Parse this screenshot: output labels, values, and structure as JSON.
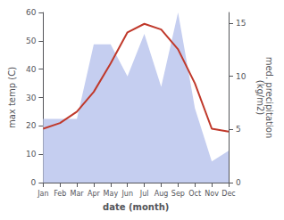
{
  "chart_data": {
    "type": "line",
    "categories": [
      "Jan",
      "Feb",
      "Mar",
      "Apr",
      "May",
      "Jun",
      "Jul",
      "Aug",
      "Sep",
      "Oct",
      "Nov",
      "Dec"
    ],
    "series": [
      {
        "type": "area",
        "color": "#c5cef0",
        "axis": "y2",
        "values": [
          6.0,
          6.0,
          6.0,
          13.0,
          13.0,
          10.0,
          14.0,
          9.0,
          16.0,
          7.0,
          2.0,
          3.0
        ]
      },
      {
        "type": "line",
        "color": "#c0392b",
        "values": [
          19,
          21,
          25,
          32,
          42,
          53,
          56,
          54,
          47,
          35,
          19,
          18
        ]
      }
    ],
    "xlabel": "date (month)",
    "ylabel": "max temp (C)",
    "y2label": "med. precipitation\n(kg/m2)",
    "ylim": [
      0,
      60
    ],
    "yticks": [
      0,
      10,
      20,
      30,
      40,
      50,
      60
    ],
    "y2lim": [
      0,
      16
    ],
    "y2ticks": [
      0,
      5,
      10,
      15
    ],
    "grid": false
  }
}
